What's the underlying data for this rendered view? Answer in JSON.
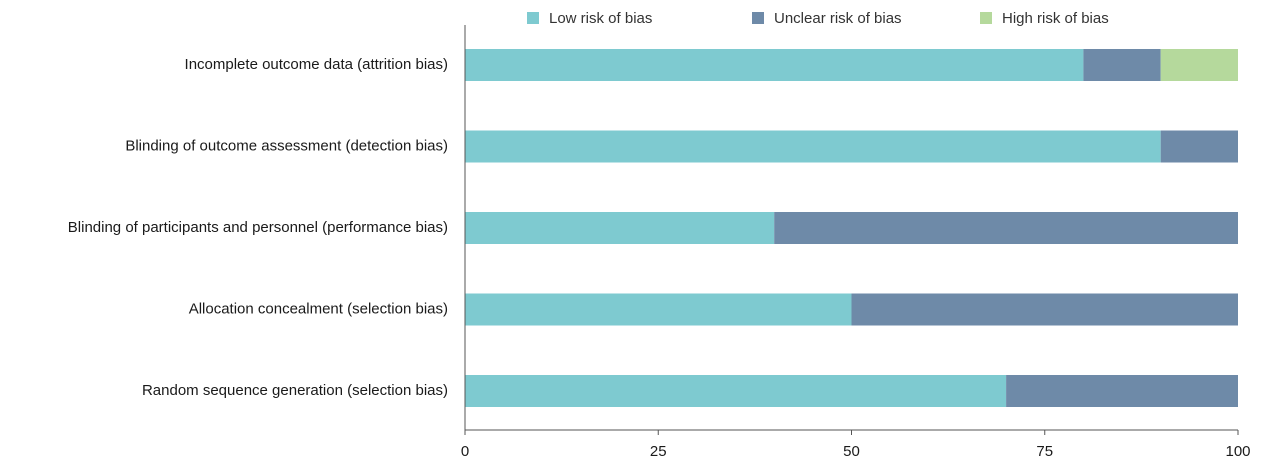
{
  "chart_data": {
    "type": "bar",
    "orientation": "horizontal",
    "stacked": true,
    "categories": [
      "Incomplete outcome data (attrition bias)",
      "Blinding of outcome assessment (detection bias)",
      "Blinding of participants and personnel (performance bias)",
      "Allocation concealment (selection bias)",
      "Random sequence generation (selection bias)"
    ],
    "series": [
      {
        "name": "Low risk of bias",
        "color": "#7ecad0",
        "values": [
          80,
          90,
          40,
          50,
          70
        ]
      },
      {
        "name": "Unclear risk of bias",
        "color": "#6e8aa8",
        "values": [
          10,
          10,
          60,
          50,
          30
        ]
      },
      {
        "name": "High risk of bias",
        "color": "#b5d99c",
        "values": [
          10,
          0,
          0,
          0,
          0
        ]
      }
    ],
    "xlim": [
      0,
      100
    ],
    "xticks": [
      "0",
      "25",
      "50",
      "75",
      "100"
    ],
    "grid": false,
    "legend_position": "top"
  }
}
